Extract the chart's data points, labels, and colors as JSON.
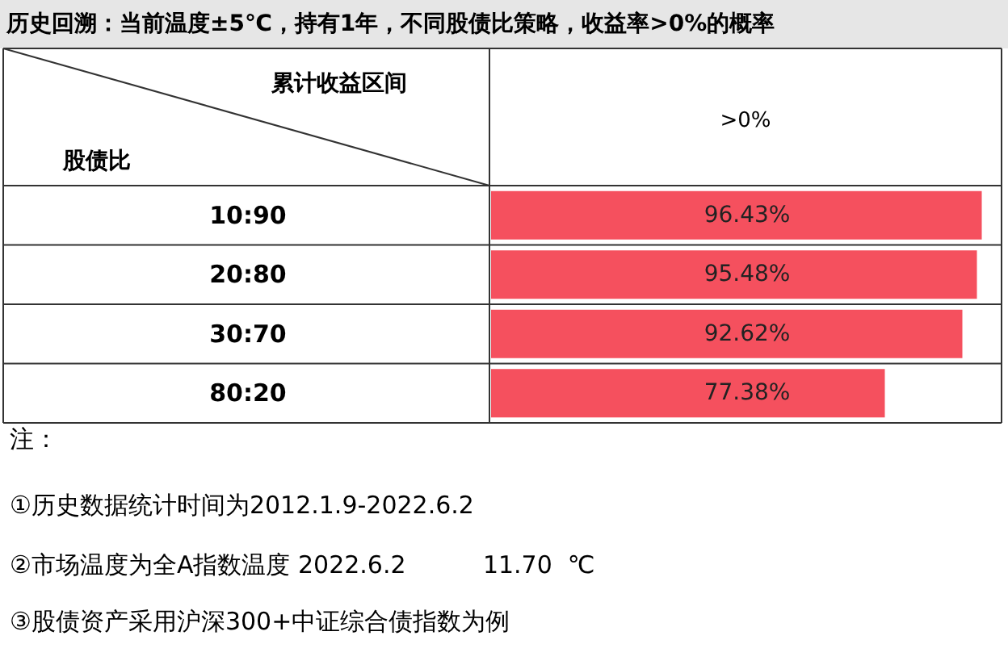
{
  "chart_data": {
    "type": "bar",
    "orientation": "horizontal",
    "title": "历史回溯：当前温度±5℃，持有1年，不同股债比策略，收益率>0%的概率",
    "xlabel": "累计收益区间",
    "ylabel": "股债比",
    "categories": [
      "10:90",
      "20:80",
      "30:70",
      "80:20"
    ],
    "values": [
      96.43,
      95.48,
      92.62,
      77.38
    ],
    "value_labels": [
      "96.43%",
      "95.48%",
      "92.62%",
      "77.38%"
    ],
    "color": "#f5505e",
    "xlim": [
      0,
      100
    ],
    "tick_labels": "y",
    "annotations": [
      ">0%",
      "注：",
      "①历史数据统计时间为2012.1.9-2022.6.2",
      "②市场温度为全A指数温度 2022.6.2          11.70  ℃",
      "③股债资产采用沪深300+中证综合债指数为例"
    ]
  }
}
